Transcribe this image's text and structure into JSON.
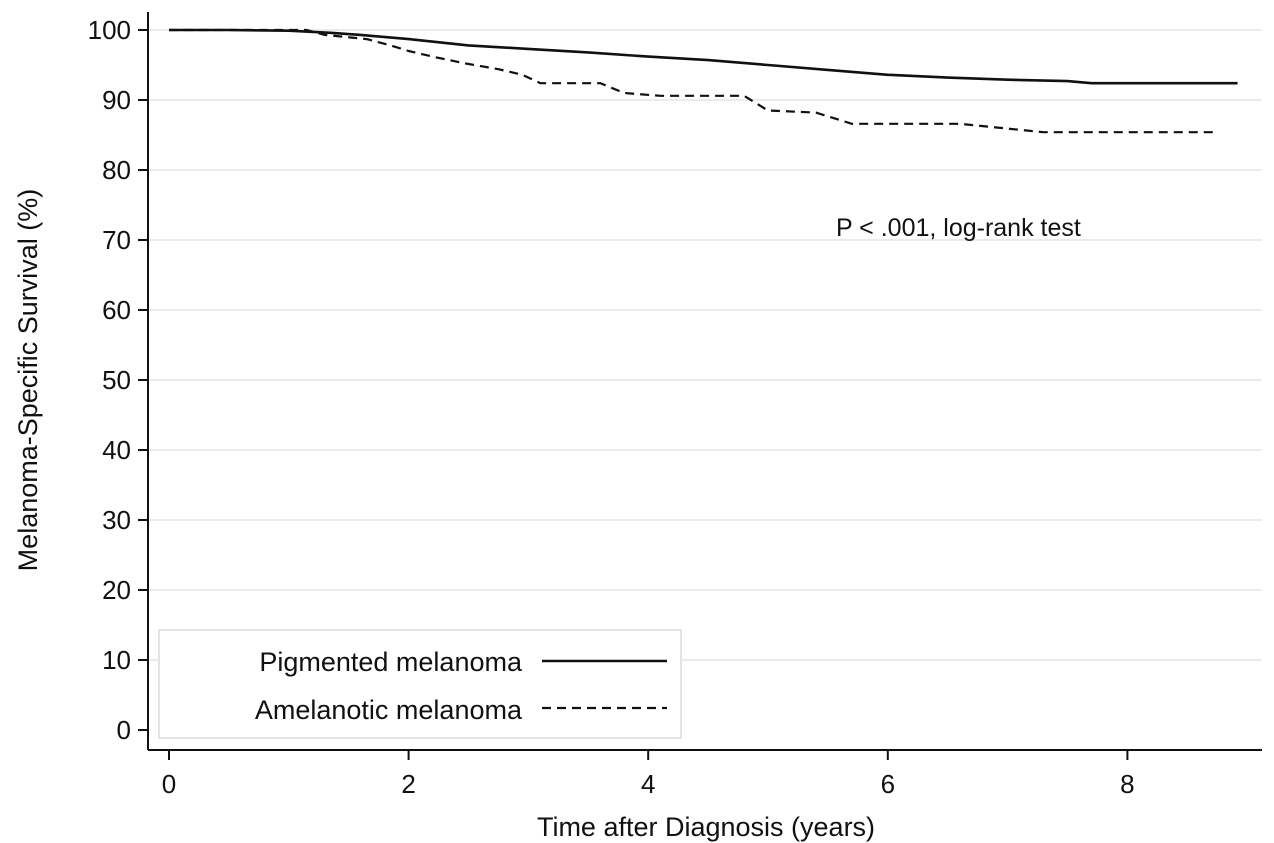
{
  "chart_data": {
    "type": "line",
    "xlabel": "Time after Diagnosis (years)",
    "ylabel": "Melanoma-Specific Survival (%)",
    "xlim": [
      0,
      9
    ],
    "ylim": [
      0,
      100
    ],
    "xticks": [
      0,
      2,
      4,
      6,
      8
    ],
    "yticks": [
      0,
      10,
      20,
      30,
      40,
      50,
      60,
      70,
      80,
      90,
      100
    ],
    "grid": "horizontal",
    "legend_position": "bottom-left",
    "annotation": "P < .001, log-rank test",
    "series": [
      {
        "name": "Pigmented melanoma",
        "style": "solid",
        "color": "#111111",
        "x": [
          0,
          0.5,
          1.0,
          1.35,
          1.6,
          2.0,
          2.5,
          3.0,
          3.5,
          4.0,
          4.5,
          5.0,
          5.5,
          6.0,
          6.5,
          7.0,
          7.5,
          7.7,
          8.0,
          8.5,
          8.92
        ],
        "y": [
          100,
          100,
          99.9,
          99.6,
          99.3,
          98.7,
          97.8,
          97.3,
          96.8,
          96.2,
          95.7,
          95.0,
          94.3,
          93.6,
          93.2,
          92.9,
          92.7,
          92.4,
          92.4,
          92.4,
          92.4
        ]
      },
      {
        "name": "Amelanotic melanoma",
        "style": "dashed",
        "color": "#111111",
        "x": [
          0,
          1.15,
          1.3,
          1.65,
          1.85,
          2.0,
          2.2,
          2.45,
          2.75,
          2.95,
          3.1,
          3.6,
          3.8,
          4.1,
          4.8,
          5.0,
          5.4,
          5.7,
          6.6,
          7.3,
          8.75
        ],
        "y": [
          100,
          100,
          99.3,
          98.7,
          97.8,
          97.0,
          96.2,
          95.3,
          94.4,
          93.6,
          92.4,
          92.4,
          91.0,
          90.6,
          90.6,
          88.5,
          88.2,
          86.6,
          86.6,
          85.4,
          85.4
        ]
      }
    ]
  }
}
